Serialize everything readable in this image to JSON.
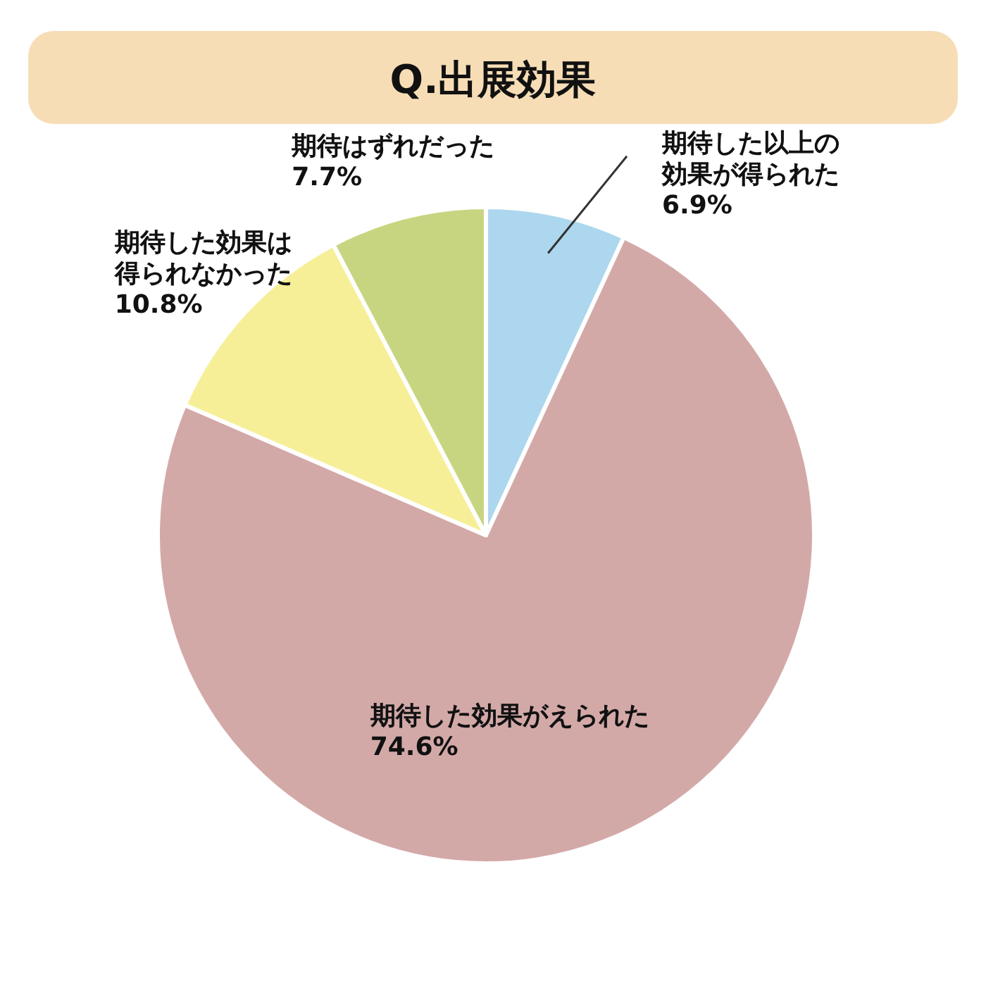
{
  "chart_data": {
    "type": "pie",
    "title": "Q.出展効果",
    "categories": [
      "期待した以上の効果が得られた",
      "期待した効果がえられた",
      "期待した効果は得られなかった",
      "期待はずれだった"
    ],
    "values": [
      6.9,
      74.6,
      10.8,
      7.7
    ],
    "value_labels": [
      "6.9%",
      "74.6%",
      "10.8%",
      "7.7%"
    ],
    "colors": [
      "#acd7ee",
      "#d3a9a8",
      "#f7ef97",
      "#c8d580"
    ]
  }
}
